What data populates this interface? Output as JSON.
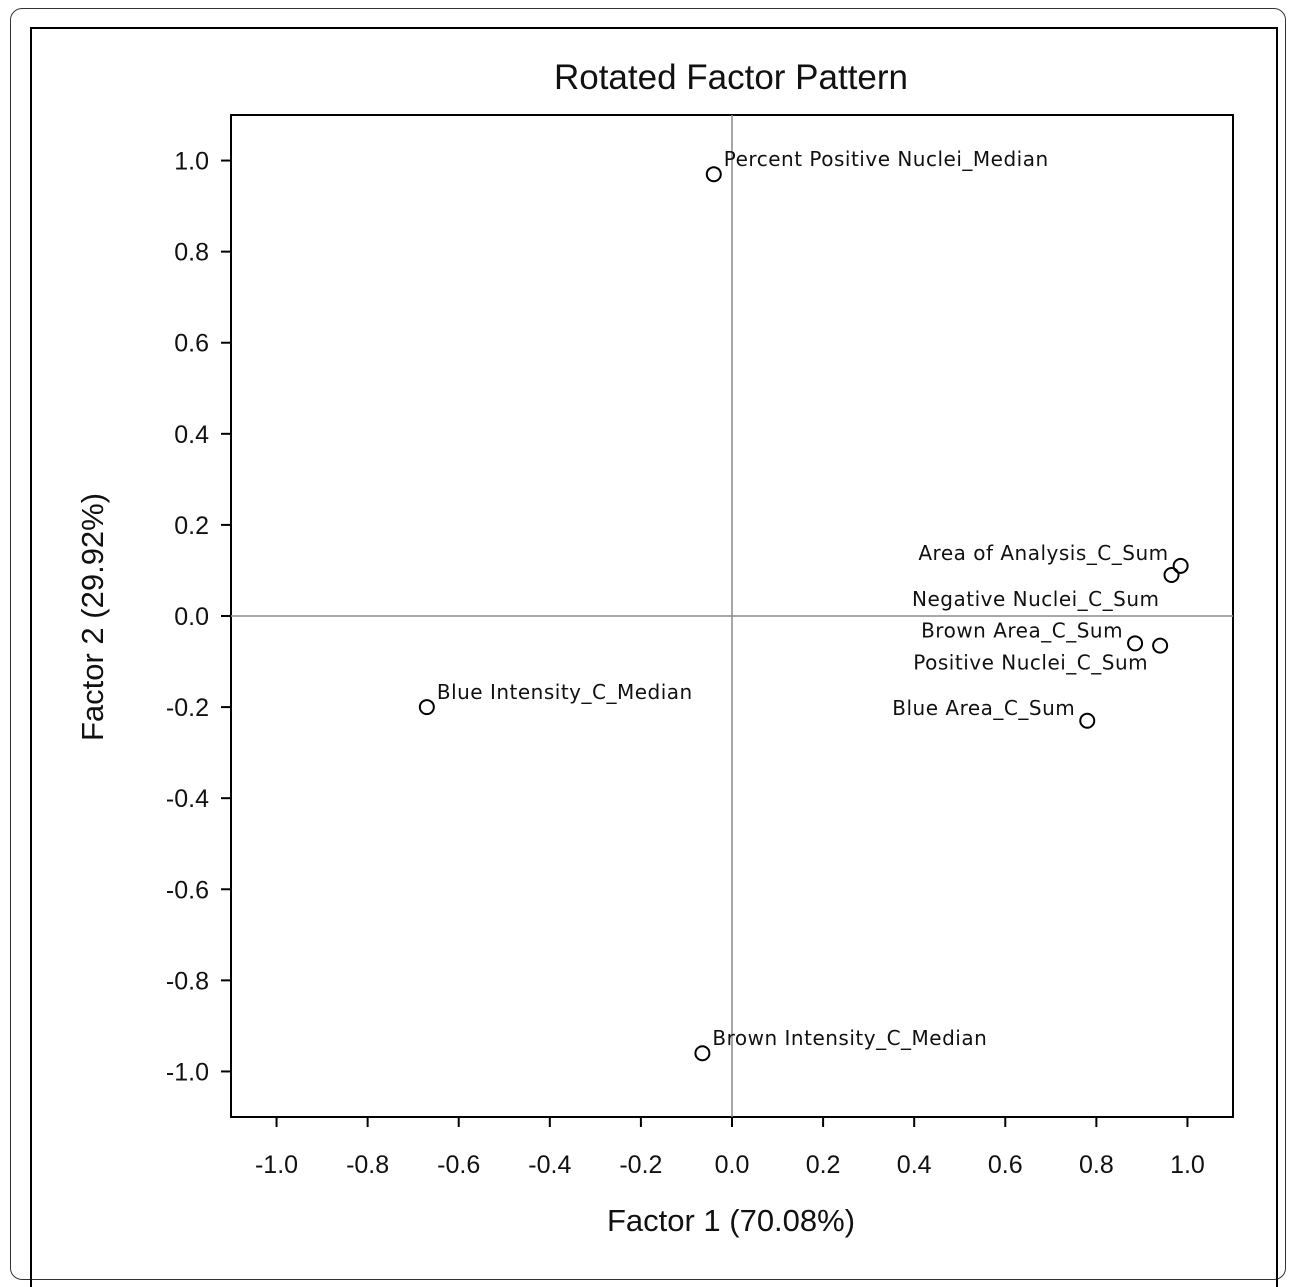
{
  "chart_data": {
    "type": "scatter",
    "title": "Rotated Factor Pattern",
    "xlabel": "Factor 1 (70.08%)",
    "ylabel": "Factor 2 (29.92%)",
    "xlim": [
      -1.1,
      1.1
    ],
    "ylim": [
      -1.1,
      1.1
    ],
    "xticks": [
      "-1.0",
      "-0.8",
      "-0.6",
      "-0.4",
      "-0.2",
      "0.0",
      "0.2",
      "0.4",
      "0.6",
      "0.8",
      "1.0"
    ],
    "yticks": [
      "1.0",
      "0.8",
      "0.6",
      "0.4",
      "0.2",
      "0.0",
      "-0.2",
      "-0.4",
      "-0.6",
      "-0.8",
      "-1.0"
    ],
    "reference_lines": {
      "x": 0,
      "y": 0
    },
    "grid": false,
    "marker": "open-circle",
    "points": [
      {
        "label": "Percent Positive Nuclei_Median",
        "x": -0.04,
        "y": 0.97
      },
      {
        "label": "Area of Analysis_C_Sum",
        "x": 0.985,
        "y": 0.11
      },
      {
        "label": "Negative Nuclei_C_Sum",
        "x": 0.965,
        "y": 0.09
      },
      {
        "label": "Brown Area_C_Sum",
        "x": 0.885,
        "y": -0.06
      },
      {
        "label": "Positive Nuclei_C_Sum",
        "x": 0.94,
        "y": -0.065
      },
      {
        "label": "Blue Area_C_Sum",
        "x": 0.78,
        "y": -0.23
      },
      {
        "label": "Blue Intensity_C_Median",
        "x": -0.67,
        "y": -0.2
      },
      {
        "label": "Brown Intensity_C_Median",
        "x": -0.065,
        "y": -0.96
      }
    ]
  }
}
